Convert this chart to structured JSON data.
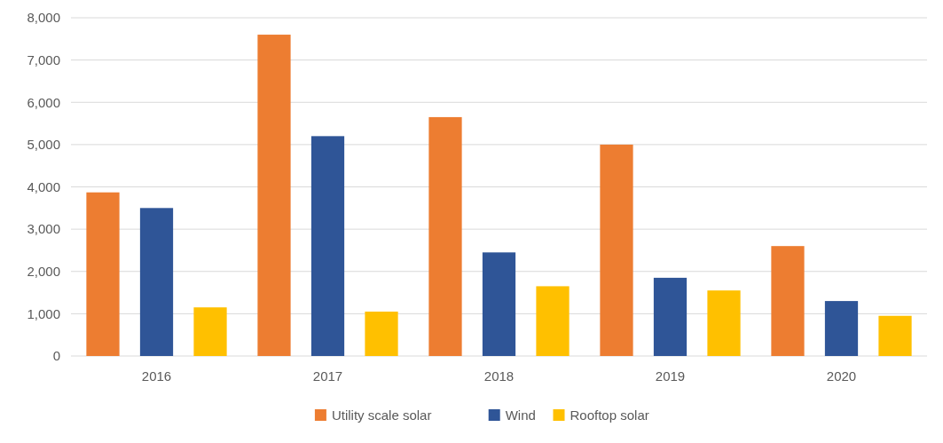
{
  "chart_data": {
    "type": "bar",
    "categories": [
      "2016",
      "2017",
      "2018",
      "2019",
      "2020"
    ],
    "series": [
      {
        "name": "Utility scale solar",
        "color": "#ed7d31",
        "values": [
          3870,
          7600,
          5650,
          5000,
          2600
        ]
      },
      {
        "name": "Wind",
        "color": "#2f5597",
        "values": [
          3500,
          5200,
          2450,
          1850,
          1300
        ]
      },
      {
        "name": "Rooftop solar",
        "color": "#ffc000",
        "values": [
          1150,
          1050,
          1650,
          1550,
          950
        ]
      }
    ],
    "ylim": [
      0,
      8000
    ],
    "yticks": [
      {
        "value": 0,
        "label": "0"
      },
      {
        "value": 1000,
        "label": "1,000"
      },
      {
        "value": 2000,
        "label": "2,000"
      },
      {
        "value": 3000,
        "label": "3,000"
      },
      {
        "value": 4000,
        "label": "4,000"
      },
      {
        "value": 5000,
        "label": "5,000"
      },
      {
        "value": 6000,
        "label": "6,000"
      },
      {
        "value": 7000,
        "label": "7,000"
      },
      {
        "value": 8000,
        "label": "8,000"
      }
    ],
    "grid": "y",
    "legend": "bottom"
  }
}
